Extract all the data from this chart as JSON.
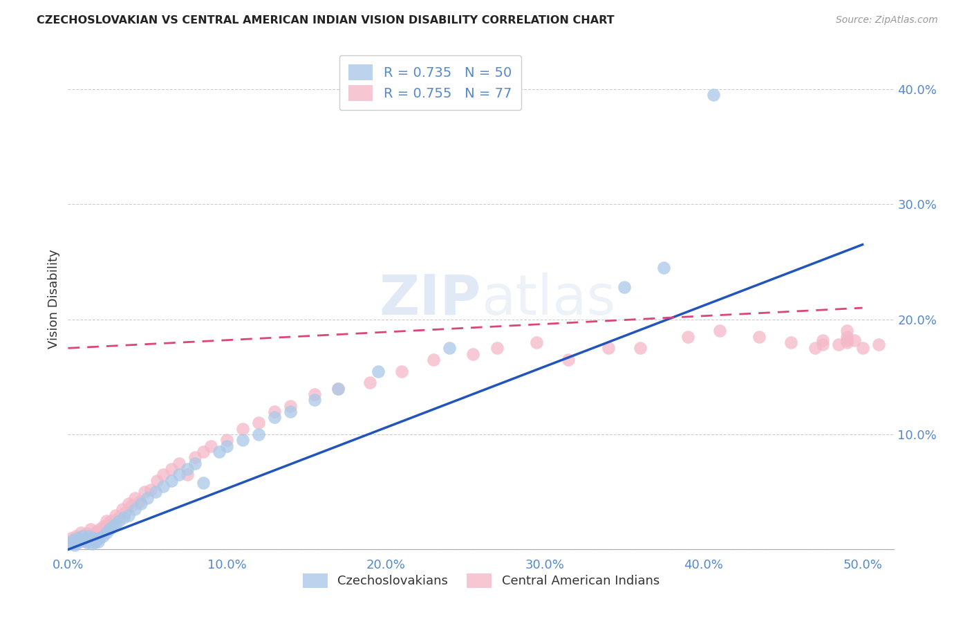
{
  "title": "CZECHOSLOVAKIAN VS CENTRAL AMERICAN INDIAN VISION DISABILITY CORRELATION CHART",
  "source": "Source: ZipAtlas.com",
  "ylabel": "Vision Disability",
  "xlim": [
    0.0,
    0.52
  ],
  "ylim": [
    -0.005,
    0.44
  ],
  "xticks": [
    0.0,
    0.1,
    0.2,
    0.3,
    0.4,
    0.5
  ],
  "yticks": [
    0.0,
    0.1,
    0.2,
    0.3,
    0.4
  ],
  "xticklabels": [
    "0.0%",
    "10.0%",
    "20.0%",
    "30.0%",
    "40.0%",
    "50.0%"
  ],
  "yticklabels": [
    "",
    "10.0%",
    "20.0%",
    "30.0%",
    "40.0%"
  ],
  "blue_R": 0.735,
  "blue_N": 50,
  "pink_R": 0.755,
  "pink_N": 77,
  "blue_color": "#aac8e8",
  "pink_color": "#f4b8c8",
  "blue_line_color": "#2255bb",
  "pink_line_color": "#dd4477",
  "tick_color": "#5588cc",
  "background_color": "#ffffff",
  "grid_color": "#cccccc",
  "blue_line_y0": 0.0,
  "blue_line_y1": 0.265,
  "pink_line_y0": 0.175,
  "pink_line_y1": 0.21,
  "blue_scatter_x": [
    0.002,
    0.003,
    0.004,
    0.005,
    0.006,
    0.007,
    0.008,
    0.009,
    0.01,
    0.011,
    0.012,
    0.013,
    0.014,
    0.015,
    0.016,
    0.017,
    0.018,
    0.019,
    0.02,
    0.022,
    0.024,
    0.026,
    0.028,
    0.03,
    0.032,
    0.035,
    0.038,
    0.042,
    0.046,
    0.05,
    0.055,
    0.06,
    0.065,
    0.07,
    0.075,
    0.08,
    0.085,
    0.095,
    0.1,
    0.11,
    0.12,
    0.13,
    0.14,
    0.155,
    0.17,
    0.195,
    0.24,
    0.35,
    0.375,
    0.406
  ],
  "blue_scatter_y": [
    0.005,
    0.008,
    0.004,
    0.006,
    0.01,
    0.007,
    0.009,
    0.012,
    0.008,
    0.01,
    0.006,
    0.012,
    0.008,
    0.005,
    0.01,
    0.006,
    0.009,
    0.007,
    0.01,
    0.012,
    0.015,
    0.018,
    0.02,
    0.022,
    0.025,
    0.028,
    0.03,
    0.035,
    0.04,
    0.045,
    0.05,
    0.055,
    0.06,
    0.065,
    0.07,
    0.075,
    0.058,
    0.085,
    0.09,
    0.095,
    0.1,
    0.115,
    0.12,
    0.13,
    0.14,
    0.155,
    0.175,
    0.228,
    0.245,
    0.395
  ],
  "pink_scatter_x": [
    0.001,
    0.002,
    0.003,
    0.004,
    0.005,
    0.006,
    0.007,
    0.008,
    0.009,
    0.01,
    0.011,
    0.012,
    0.013,
    0.014,
    0.015,
    0.016,
    0.017,
    0.018,
    0.019,
    0.02,
    0.021,
    0.022,
    0.023,
    0.024,
    0.025,
    0.026,
    0.027,
    0.028,
    0.03,
    0.032,
    0.034,
    0.036,
    0.038,
    0.04,
    0.042,
    0.045,
    0.048,
    0.052,
    0.056,
    0.06,
    0.065,
    0.07,
    0.075,
    0.08,
    0.085,
    0.09,
    0.1,
    0.11,
    0.12,
    0.13,
    0.14,
    0.155,
    0.17,
    0.19,
    0.21,
    0.23,
    0.255,
    0.27,
    0.295,
    0.315,
    0.34,
    0.36,
    0.39,
    0.41,
    0.435,
    0.455,
    0.475,
    0.49,
    0.51,
    0.49,
    0.47,
    0.475,
    0.49,
    0.5,
    0.495,
    0.485,
    0.49
  ],
  "pink_scatter_y": [
    0.006,
    0.01,
    0.005,
    0.008,
    0.012,
    0.006,
    0.009,
    0.015,
    0.008,
    0.012,
    0.007,
    0.014,
    0.01,
    0.018,
    0.008,
    0.012,
    0.01,
    0.016,
    0.012,
    0.018,
    0.015,
    0.02,
    0.018,
    0.025,
    0.022,
    0.018,
    0.025,
    0.022,
    0.03,
    0.028,
    0.035,
    0.032,
    0.04,
    0.038,
    0.045,
    0.042,
    0.05,
    0.052,
    0.06,
    0.065,
    0.07,
    0.075,
    0.065,
    0.08,
    0.085,
    0.09,
    0.095,
    0.105,
    0.11,
    0.12,
    0.125,
    0.135,
    0.14,
    0.145,
    0.155,
    0.165,
    0.17,
    0.175,
    0.18,
    0.165,
    0.175,
    0.175,
    0.185,
    0.19,
    0.185,
    0.18,
    0.182,
    0.185,
    0.178,
    0.19,
    0.175,
    0.178,
    0.182,
    0.175,
    0.182,
    0.178,
    0.18
  ]
}
